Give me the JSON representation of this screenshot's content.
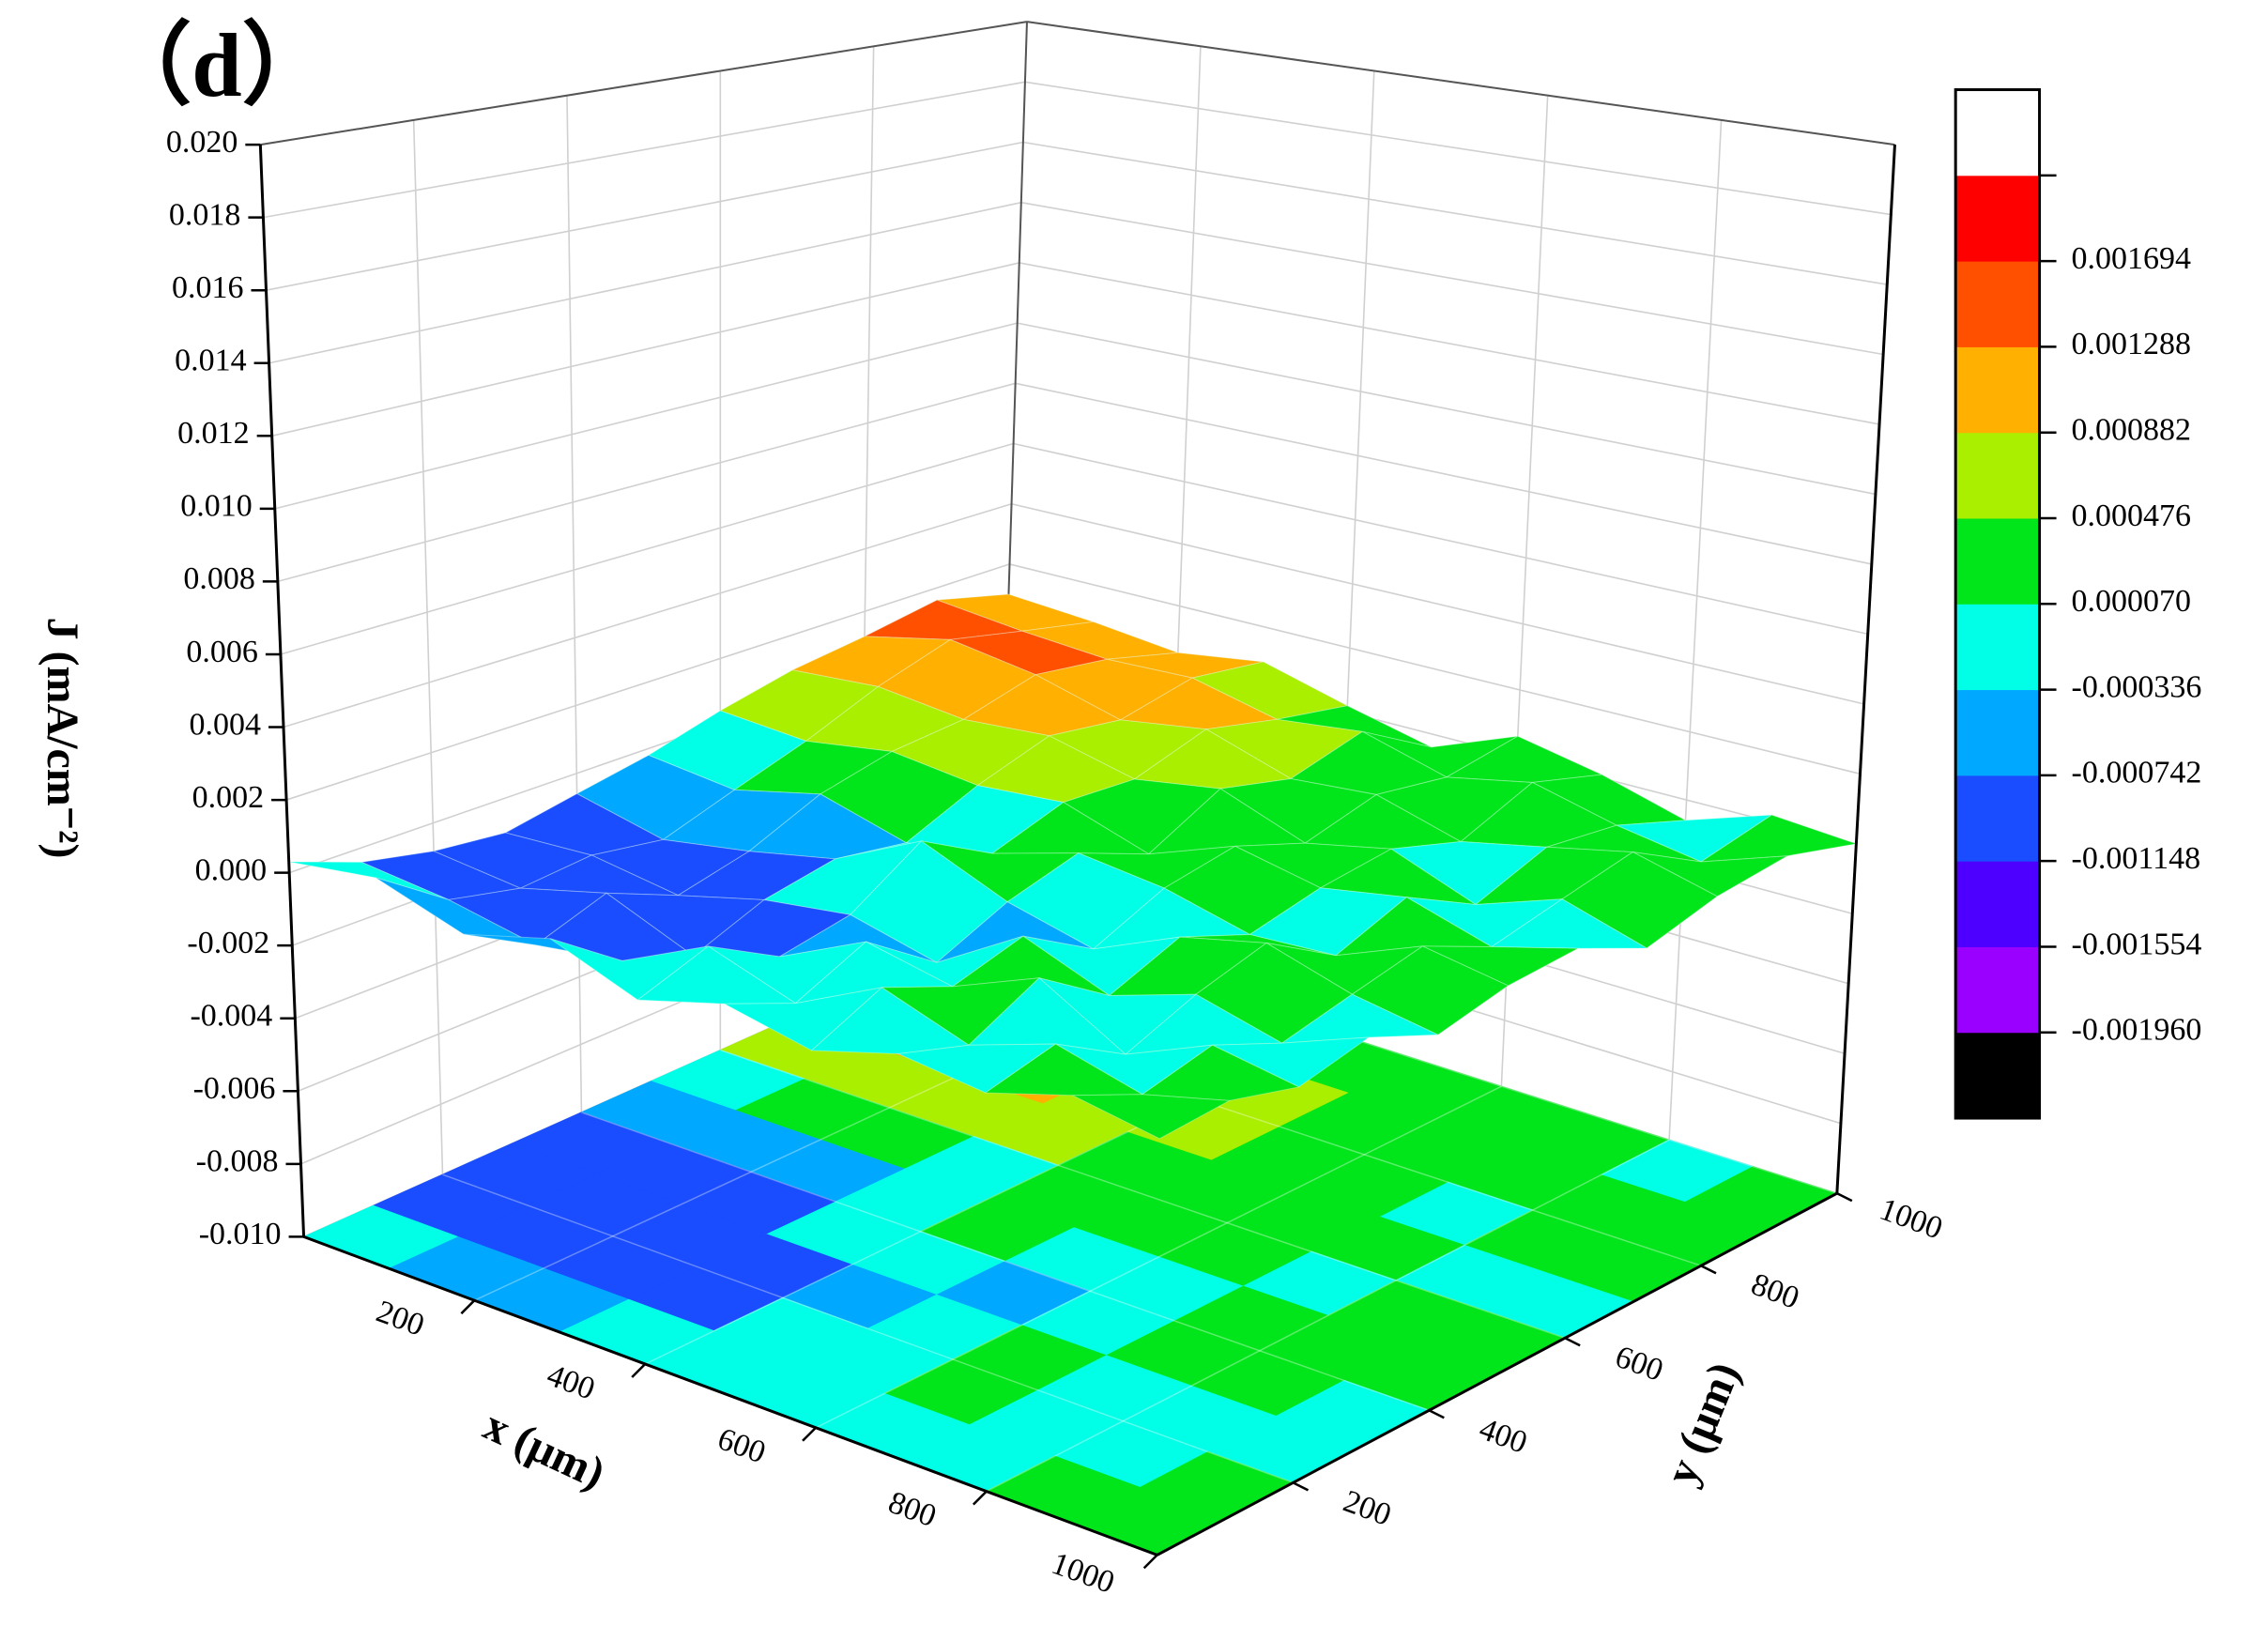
{
  "chart_data": {
    "type": "surface3d",
    "title": "（d）",
    "xlabel": "x (μm)",
    "ylabel": "y (μm)",
    "zlabel": "J (mA/cm⁻²)",
    "x": [
      0,
      100,
      200,
      300,
      400,
      500,
      600,
      700,
      800,
      900,
      1000
    ],
    "y": [
      0,
      100,
      200,
      300,
      400,
      500,
      600,
      700,
      800,
      900,
      1000
    ],
    "z": [
      [
        0.0003,
        -0.0004,
        -0.0008,
        -0.001,
        -0.0006,
        -0.0002,
        0.0004,
        0.0009,
        0.0012,
        0.0016,
        0.001
      ],
      [
        0.0006,
        -0.0007,
        -0.0011,
        -0.0009,
        -0.0012,
        -0.0005,
        0.0002,
        0.0011,
        0.0018,
        0.0013,
        0.0008
      ],
      [
        -0.0002,
        -0.0012,
        -0.0005,
        -0.0013,
        -0.0008,
        0.0001,
        0.0006,
        0.0008,
        0.0014,
        0.0011,
        0.0005
      ],
      [
        0.0004,
        -0.0009,
        -0.0015,
        -0.0007,
        -0.0003,
        -0.0006,
        0.0003,
        0.001,
        0.0007,
        0.0012,
        0.0009
      ],
      [
        -0.0005,
        0.0002,
        -0.0008,
        -0.0004,
        0.0009,
        -0.0002,
        0.0005,
        0.0004,
        0.0011,
        0.0006,
        0.0002
      ],
      [
        0.0001,
        -0.0006,
        0.0003,
        -0.001,
        -0.0001,
        0.0005,
        -0.0003,
        0.0008,
        0.0003,
        0.0009,
        -0.0004
      ],
      [
        -0.0004,
        0.0005,
        -0.0002,
        0.0004,
        -0.0007,
        0.0002,
        0.0006,
        -0.0001,
        0.0005,
        0.0002,
        0.0006
      ],
      [
        0.0002,
        -0.0003,
        0.0007,
        -0.0005,
        0.0003,
        -0.0004,
        0.0001,
        0.0004,
        -0.0002,
        0.0007,
        0.0001
      ],
      [
        -0.0001,
        0.0004,
        -0.0006,
        0.0002,
        0.0008,
        -0.0003,
        0.0005,
        -0.0005,
        0.0003,
        0.0001,
        -0.0006
      ],
      [
        0.0005,
        -0.0002,
        0.0003,
        -0.0004,
        0.0001,
        0.0006,
        -0.0002,
        0.0003,
        0.0008,
        -0.0003,
        0.0002
      ],
      [
        0.0001,
        0.0003,
        -0.0001,
        0.0004,
        -0.0003,
        0.0002,
        0.0004,
        -0.0004,
        0.0002,
        0.0005,
        0
      ]
    ],
    "xlim": [
      0,
      1000
    ],
    "ylim": [
      0,
      1000
    ],
    "zlim": [
      -0.01,
      0.02
    ],
    "xticks": [
      200,
      400,
      600,
      800,
      1000
    ],
    "yticks": [
      200,
      400,
      600,
      800,
      1000
    ],
    "zticks": [
      {
        "value": -0.01,
        "label": "-0.010"
      },
      -0.008,
      -0.006,
      -0.004,
      -0.002,
      {
        "value": 0,
        "label": "0.000"
      },
      0.002,
      0.004,
      0.006,
      0.008,
      {
        "value": 0.01,
        "label": "0.010"
      },
      0.012,
      0.014,
      0.016,
      0.018,
      {
        "value": 0.02,
        "label": "0.020"
      }
    ],
    "colorbar": {
      "ticks": [
        {
          "value": -0.00196,
          "label": "-0.001960"
        },
        -0.001554,
        -0.001148,
        -0.000742,
        -0.000336,
        {
          "value": 7e-05,
          "label": "0.000070"
        },
        0.000476,
        0.000882,
        0.001288,
        0.001694
      ],
      "colors": [
        "#000000",
        "#9900ff",
        "#4d00ff",
        "#1a4dff",
        "#00a8ff",
        "#00ffe6",
        "#00e61a",
        "#aaee00",
        "#ffb000",
        "#ff5000",
        "#ff0000",
        "#ffffff"
      ]
    },
    "grid": true
  }
}
